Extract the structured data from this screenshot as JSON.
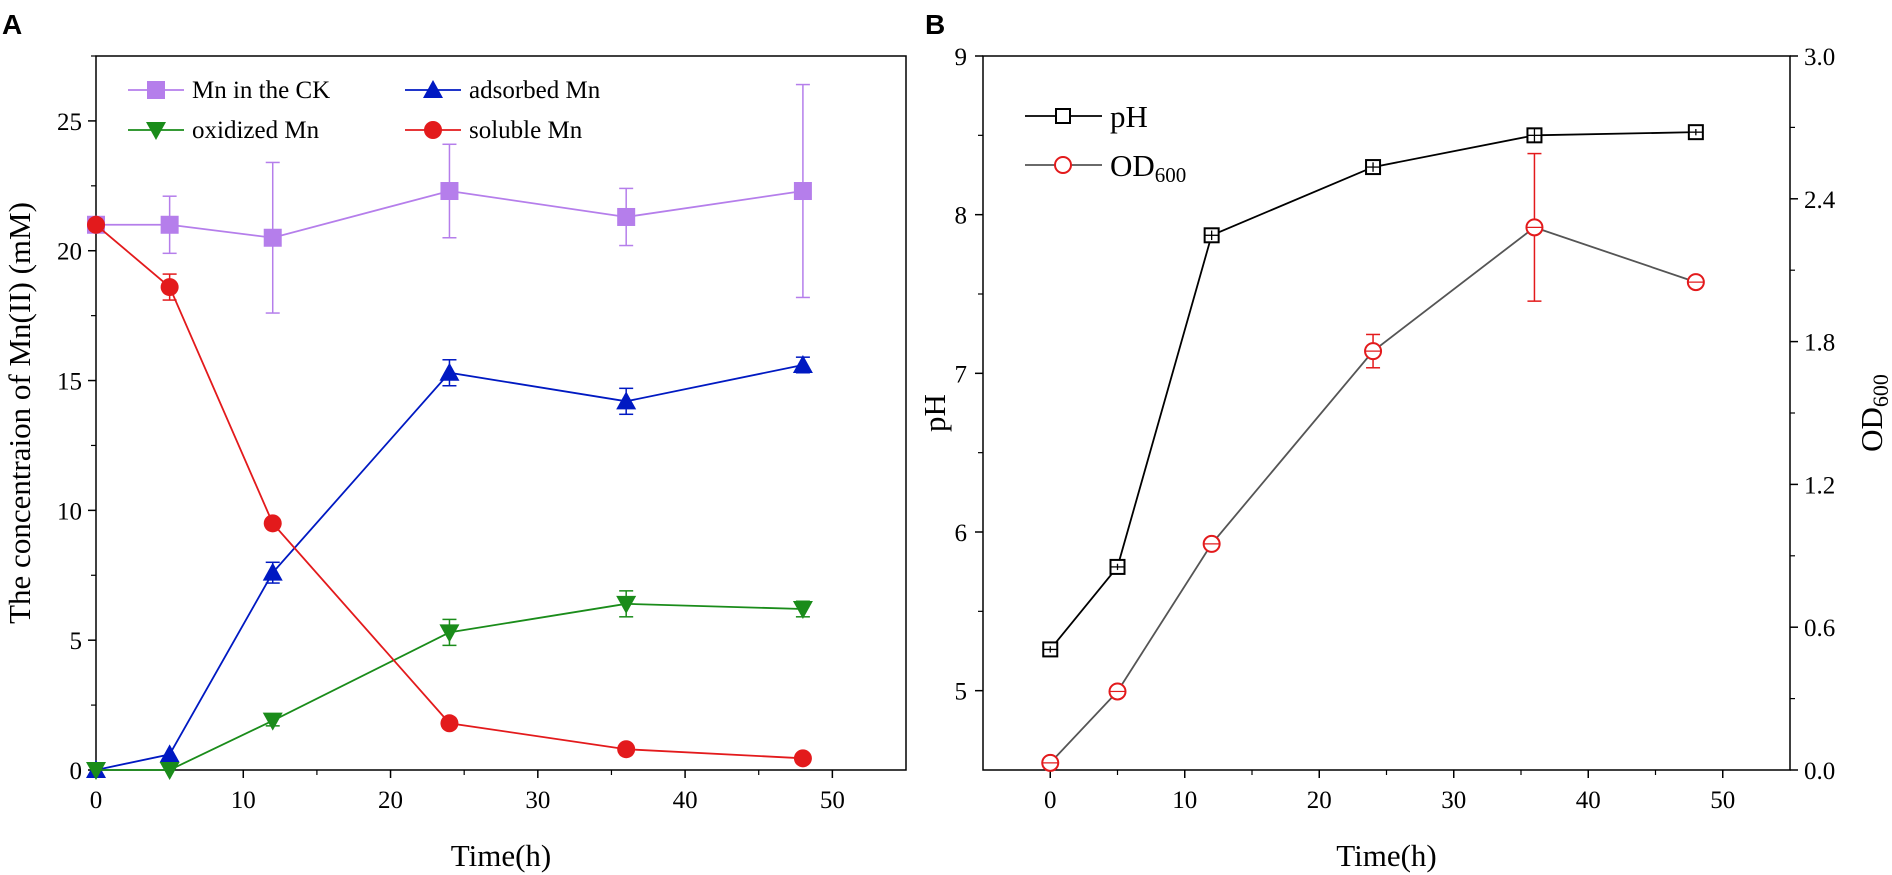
{
  "figure": {
    "panel_a_letter": "A",
    "panel_b_letter": "B"
  },
  "chart_data": [
    {
      "type": "line",
      "panel": "A",
      "title": "",
      "xlabel": "Time(h)",
      "ylabel": "The concentraion of Mn(II) (mM)",
      "xlim": [
        0,
        55
      ],
      "ylim": [
        0,
        27.5
      ],
      "xticks": [
        0,
        10,
        20,
        30,
        40,
        50
      ],
      "yticks": [
        0,
        5,
        10,
        15,
        20,
        25
      ],
      "legend_position": "top",
      "series": [
        {
          "name": "Mn in the CK",
          "color": "#b57eeb",
          "marker": "square",
          "x": [
            0,
            5,
            12,
            24,
            36,
            48
          ],
          "y": [
            21.0,
            21.0,
            20.5,
            22.3,
            21.3,
            22.3
          ],
          "err": [
            0.0,
            1.1,
            2.9,
            1.8,
            1.1,
            4.1
          ]
        },
        {
          "name": "adsorbed Mn",
          "color": "#0019c2",
          "marker": "triangle-up",
          "x": [
            0,
            5,
            12,
            24,
            36,
            48
          ],
          "y": [
            0.0,
            0.6,
            7.6,
            15.3,
            14.2,
            15.6
          ],
          "err": [
            0.0,
            0.0,
            0.4,
            0.5,
            0.5,
            0.3
          ]
        },
        {
          "name": "oxidized Mn",
          "color": "#1a8c1a",
          "marker": "triangle-down",
          "x": [
            0,
            5,
            12,
            24,
            36,
            48
          ],
          "y": [
            0.0,
            0.0,
            1.9,
            5.3,
            6.4,
            6.2
          ],
          "err": [
            0.0,
            0.0,
            0.2,
            0.5,
            0.5,
            0.3
          ]
        },
        {
          "name": "soluble Mn",
          "color": "#e31a1c",
          "marker": "circle",
          "x": [
            0,
            5,
            12,
            24,
            36,
            48
          ],
          "y": [
            21.0,
            18.6,
            9.5,
            1.8,
            0.8,
            0.45
          ],
          "err": [
            0.0,
            0.5,
            0.1,
            0.1,
            0.1,
            0.1
          ]
        }
      ]
    },
    {
      "type": "line",
      "panel": "B",
      "title": "",
      "xlabel": "Time(h)",
      "ylabel": "pH",
      "y2label_main": "OD",
      "y2label_sub": "600",
      "xlim": [
        -5,
        55
      ],
      "ylim": [
        4.5,
        9
      ],
      "y2lim": [
        0,
        3.0
      ],
      "xticks": [
        0,
        10,
        20,
        30,
        40,
        50
      ],
      "yticks": [
        5,
        6,
        7,
        8,
        9
      ],
      "y2ticks": [
        "0.0",
        "0.6",
        "1.2",
        "1.8",
        "2.4",
        "3.0"
      ],
      "legend_position": "top-left",
      "series": [
        {
          "name": "pH",
          "axis": "left",
          "color": "#000000",
          "marker": "square-open",
          "x": [
            0,
            5,
            12,
            24,
            36,
            48
          ],
          "y": [
            5.26,
            5.78,
            7.87,
            8.3,
            8.5,
            8.52
          ],
          "err": [
            0.02,
            0.02,
            0.03,
            0.03,
            0.04,
            0.02
          ]
        },
        {
          "name_main": "OD",
          "name_sub": "600",
          "axis": "right",
          "color": "#e31a1c",
          "line_color": "#555555",
          "marker": "circle-open",
          "x": [
            0,
            5,
            12,
            24,
            36,
            48
          ],
          "y": [
            0.03,
            0.33,
            0.95,
            1.76,
            2.28,
            2.05
          ],
          "err": [
            0.01,
            0.01,
            0.01,
            0.07,
            0.31,
            0.02
          ]
        }
      ]
    }
  ]
}
